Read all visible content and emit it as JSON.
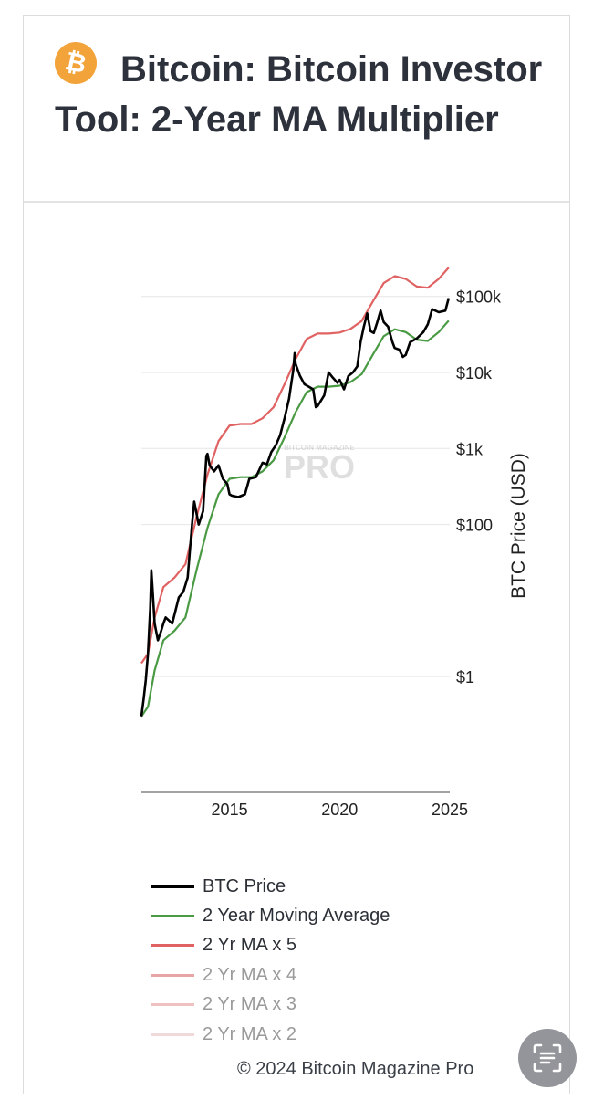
{
  "header": {
    "title": "Bitcoin: Bitcoin Investor Tool: 2-Year MA Multiplier",
    "logo_icon": "bitcoin-logo-icon"
  },
  "watermark": {
    "small_text": "BITCOIN MAGAZINE",
    "big_text": "PRO"
  },
  "chart_data": {
    "type": "line",
    "ylabel": "BTC Price (USD)",
    "y_scale": "log",
    "ylim": [
      0.03,
      300000
    ],
    "xlim": [
      2011.0,
      2025.0
    ],
    "y_ticks": [
      {
        "value": 1,
        "label": "$1"
      },
      {
        "value": 100,
        "label": "$100"
      },
      {
        "value": 1000,
        "label": "$1k"
      },
      {
        "value": 10000,
        "label": "$10k"
      },
      {
        "value": 100000,
        "label": "$100k"
      }
    ],
    "x_ticks": [
      {
        "value": 2015,
        "label": "2015"
      },
      {
        "value": 2020,
        "label": "2020"
      },
      {
        "value": 2025,
        "label": "2025"
      }
    ],
    "grid": true,
    "legend_position": "bottom",
    "series": [
      {
        "name": "BTC Price",
        "color": "#000000",
        "x": [
          2011.0,
          2011.1,
          2011.2,
          2011.3,
          2011.4,
          2011.45,
          2011.5,
          2011.6,
          2011.75,
          2011.9,
          2012.0,
          2012.1,
          2012.4,
          2012.7,
          2012.9,
          2013.1,
          2013.3,
          2013.4,
          2013.6,
          2013.8,
          2013.95,
          2014.0,
          2014.1,
          2014.3,
          2014.5,
          2014.7,
          2014.9,
          2015.0,
          2015.1,
          2015.4,
          2015.7,
          2015.9,
          2016.2,
          2016.5,
          2016.7,
          2016.9,
          2017.1,
          2017.3,
          2017.5,
          2017.7,
          2017.9,
          2017.96,
          2018.0,
          2018.2,
          2018.4,
          2018.6,
          2018.8,
          2018.92,
          2019.0,
          2019.3,
          2019.5,
          2019.7,
          2019.9,
          2020.0,
          2020.2,
          2020.4,
          2020.6,
          2020.8,
          2020.95,
          2021.1,
          2021.25,
          2021.4,
          2021.55,
          2021.7,
          2021.86,
          2022.0,
          2022.2,
          2022.4,
          2022.5,
          2022.7,
          2022.87,
          2023.0,
          2023.2,
          2023.5,
          2023.8,
          2024.0,
          2024.2,
          2024.5,
          2024.8,
          2024.95
        ],
        "values": [
          0.3,
          0.5,
          0.9,
          2.0,
          8,
          25,
          15,
          5,
          3,
          4,
          5,
          6,
          5,
          11,
          13,
          20,
          100,
          200,
          100,
          150,
          800,
          850,
          600,
          500,
          600,
          400,
          340,
          250,
          240,
          230,
          250,
          400,
          420,
          650,
          620,
          900,
          1100,
          1500,
          2500,
          4500,
          11000,
          18000,
          13000,
          9000,
          7000,
          6500,
          6000,
          3500,
          3600,
          5000,
          10000,
          8500,
          7300,
          8000,
          6000,
          9000,
          10000,
          12000,
          25000,
          40000,
          60000,
          35000,
          33000,
          45000,
          65000,
          46000,
          40000,
          25000,
          21000,
          20000,
          16000,
          17000,
          25000,
          28000,
          34000,
          43000,
          68000,
          62000,
          65000,
          95000
        ]
      },
      {
        "name": "2 Year Moving Average",
        "color": "#4a9a44",
        "x": [
          2011.0,
          2011.3,
          2011.6,
          2012.0,
          2012.5,
          2013.0,
          2013.5,
          2014.0,
          2014.5,
          2015.0,
          2015.5,
          2016.0,
          2016.5,
          2017.0,
          2017.5,
          2018.0,
          2018.5,
          2019.0,
          2019.5,
          2020.0,
          2020.5,
          2021.0,
          2021.5,
          2022.0,
          2022.5,
          2023.0,
          2023.5,
          2024.0,
          2024.5,
          2024.95
        ],
        "values": [
          0.3,
          0.4,
          1.2,
          3,
          4,
          6,
          25,
          90,
          250,
          400,
          420,
          420,
          500,
          700,
          1400,
          3000,
          5500,
          6500,
          6500,
          6700,
          7500,
          9500,
          17000,
          30000,
          37000,
          34000,
          27000,
          26000,
          34000,
          48000
        ]
      },
      {
        "name": "2 Yr MA x 5",
        "color": "#e06262",
        "x": [
          2011.0,
          2011.3,
          2011.6,
          2012.0,
          2012.5,
          2013.0,
          2013.5,
          2014.0,
          2014.5,
          2015.0,
          2015.5,
          2016.0,
          2016.5,
          2017.0,
          2017.5,
          2018.0,
          2018.5,
          2019.0,
          2019.5,
          2020.0,
          2020.5,
          2021.0,
          2021.5,
          2022.0,
          2022.5,
          2023.0,
          2023.5,
          2024.0,
          2024.5,
          2024.95
        ],
        "values": [
          1.5,
          2,
          6,
          15,
          20,
          30,
          125,
          450,
          1250,
          2000,
          2100,
          2100,
          2500,
          3500,
          7000,
          15000,
          27500,
          32500,
          32500,
          33500,
          37500,
          47500,
          85000,
          150000,
          185000,
          170000,
          135000,
          130000,
          170000,
          240000
        ]
      },
      {
        "name": "2 Yr MA x 4",
        "color": "#e8a5a5"
      },
      {
        "name": "2 Yr MA x 3",
        "color": "#efc2c2"
      },
      {
        "name": "2 Yr MA x 2",
        "color": "#f2d9d9"
      }
    ]
  },
  "legend": {
    "items": [
      {
        "label": "BTC Price",
        "color": "#000000",
        "text_color": "#2b2f36"
      },
      {
        "label": "2 Year Moving Average",
        "color": "#4a9a44",
        "text_color": "#2b2f36"
      },
      {
        "label": "2 Yr MA x 5",
        "color": "#e06262",
        "text_color": "#2b2f36"
      },
      {
        "label": "2 Yr MA x 4",
        "color": "#e8a5a5",
        "text_color": "#9a9a9a"
      },
      {
        "label": "2 Yr MA x 3",
        "color": "#efc2c2",
        "text_color": "#9a9a9a"
      },
      {
        "label": "2 Yr MA x 2",
        "color": "#f2d9d9",
        "text_color": "#9a9a9a"
      }
    ]
  },
  "footer": {
    "copyright": "© 2024 Bitcoin Magazine Pro"
  },
  "scan_button": {
    "icon": "text-scan-icon"
  }
}
